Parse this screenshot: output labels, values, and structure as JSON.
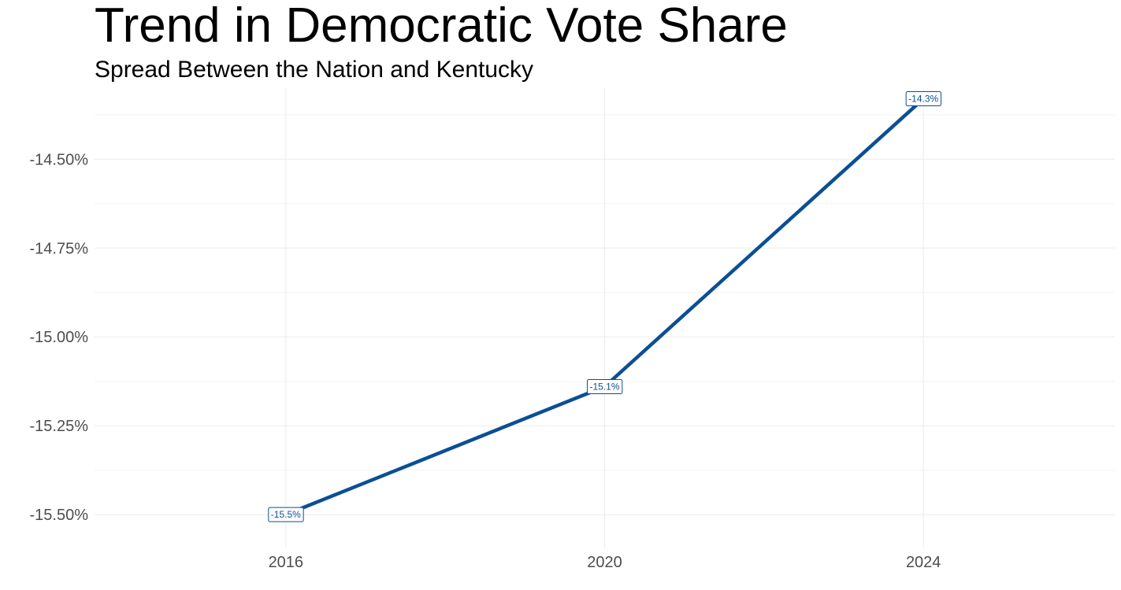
{
  "chart_data": {
    "type": "line",
    "title": "Trend in Democratic Vote Share",
    "subtitle": "Spread Between the Nation and Kentucky",
    "xlabel": "",
    "ylabel": "",
    "x": [
      2016,
      2020,
      2024
    ],
    "series": [
      {
        "values": [
          -15.5,
          -15.14,
          -14.33
        ],
        "labels": [
          "-15.5%",
          "-15.1%",
          "-14.3%"
        ]
      }
    ],
    "x_ticks": [
      2016,
      2020,
      2024
    ],
    "x_tick_labels": [
      "2016",
      "2020",
      "2024"
    ],
    "y_ticks": [
      -15.5,
      -15.25,
      -15.0,
      -14.75,
      -14.5
    ],
    "y_tick_labels": [
      "-15.50%",
      "-15.25%",
      "-15.00%",
      "-14.75%",
      "-14.50%"
    ],
    "xlim": [
      2013.6,
      2026.4
    ],
    "ylim": [
      -15.575,
      -14.3
    ],
    "grid": true,
    "line_color": "#0b4f94"
  }
}
